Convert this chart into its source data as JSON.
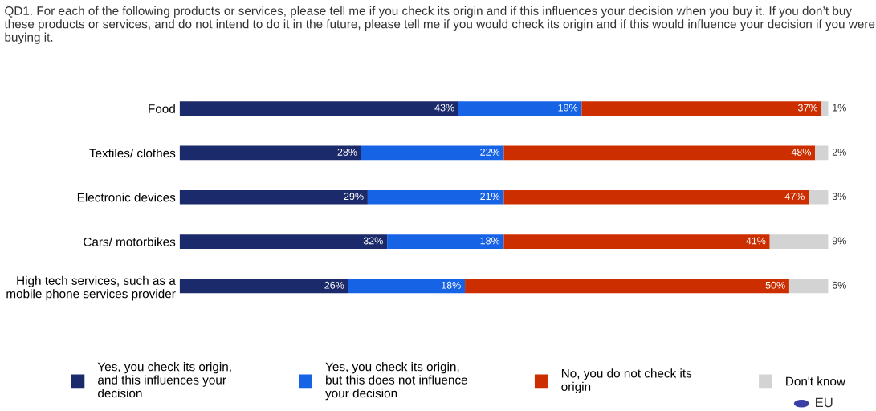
{
  "chart_data": {
    "type": "bar",
    "orientation": "horizontal",
    "stacked": true,
    "legend": "bottom",
    "grid": false,
    "tick_labels": "y",
    "title": "QD1. For each of the following products or services, please tell me if you check its origin and if this influences your decision when you buy it. If you don’t buy these products or services, and do not intend to do it in the future, please tell me if you would check its origin and if this would influence your decision if you were buying it.",
    "categories": [
      "Food",
      "Textiles/ clothes",
      "Electronic devices",
      "Cars/ motorbikes",
      "High tech services, such as a\nmobile phone services provider"
    ],
    "series": [
      {
        "name": "Yes, you check its origin,\nand this influences your\ndecision",
        "color": "#1b2a6b",
        "values": [
          43,
          28,
          29,
          32,
          26
        ],
        "value_labels": [
          "43%",
          "28%",
          "29%",
          "32%",
          "26%"
        ]
      },
      {
        "name": "Yes, you check its origin,\nbut this does not influence\nyour decision",
        "color": "#1763e6",
        "values": [
          19,
          22,
          21,
          18,
          18
        ],
        "value_labels": [
          "19%",
          "22%",
          "21%",
          "18%",
          "18%"
        ]
      },
      {
        "name": "No, you do not check its\norigin",
        "color": "#cc2e00",
        "values": [
          37,
          48,
          47,
          41,
          50
        ],
        "value_labels": [
          "37%",
          "48%",
          "47%",
          "41%",
          "50%"
        ]
      },
      {
        "name": "Don't know",
        "color": "#d3d3d3",
        "values": [
          1,
          2,
          3,
          9,
          6
        ],
        "value_labels": [
          "1%",
          "2%",
          "3%",
          "9%",
          "6%"
        ]
      }
    ],
    "annotations": [
      "EU"
    ]
  }
}
